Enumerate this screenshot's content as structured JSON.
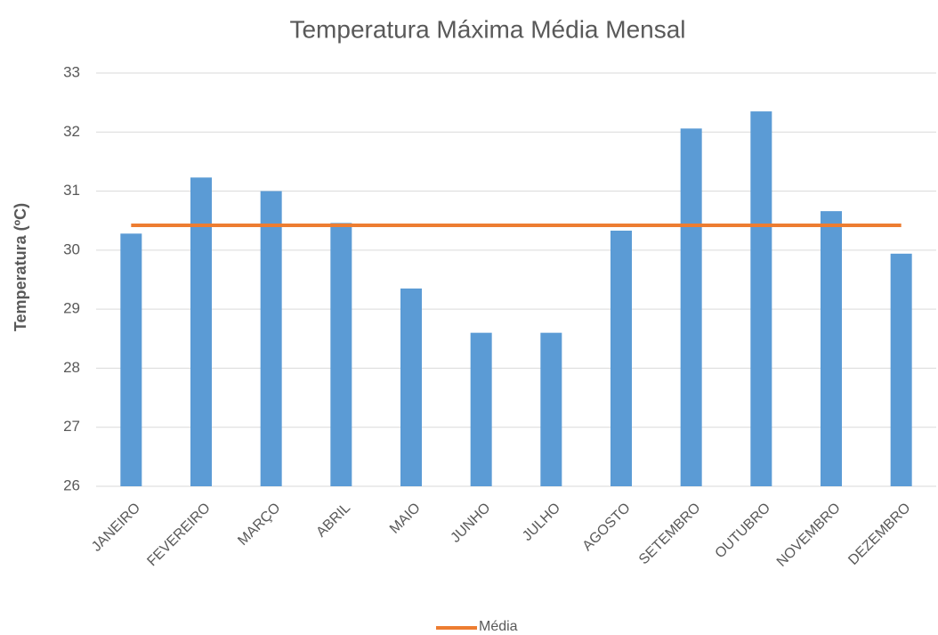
{
  "chart_data": {
    "type": "bar",
    "title": "Temperatura  Máxima Média Mensal",
    "ylabel": "Temperatura (ºC)",
    "categories": [
      "JANEIRO",
      "FEVEREIRO",
      "MARÇO",
      "ABRIL",
      "MAIO",
      "JUNHO",
      "JULHO",
      "AGOSTO",
      "SETEMBRO",
      "OUTUBRO",
      "NOVEMBRO",
      "DEZEMBRO"
    ],
    "series": [
      {
        "type": "bar",
        "color": "#5b9bd5",
        "values": [
          30.28,
          31.23,
          31.0,
          30.46,
          29.35,
          28.6,
          28.6,
          30.33,
          32.06,
          32.35,
          30.66,
          29.94
        ]
      },
      {
        "type": "line",
        "name": "Média",
        "color": "#ed7d31",
        "values": [
          30.42,
          30.42,
          30.42,
          30.42,
          30.42,
          30.42,
          30.42,
          30.42,
          30.42,
          30.42,
          30.42,
          30.42
        ]
      }
    ],
    "ylim": [
      26,
      33
    ],
    "yticks": [
      26,
      27,
      28,
      29,
      30,
      31,
      32,
      33
    ],
    "grid": true,
    "legend": "bottom"
  }
}
